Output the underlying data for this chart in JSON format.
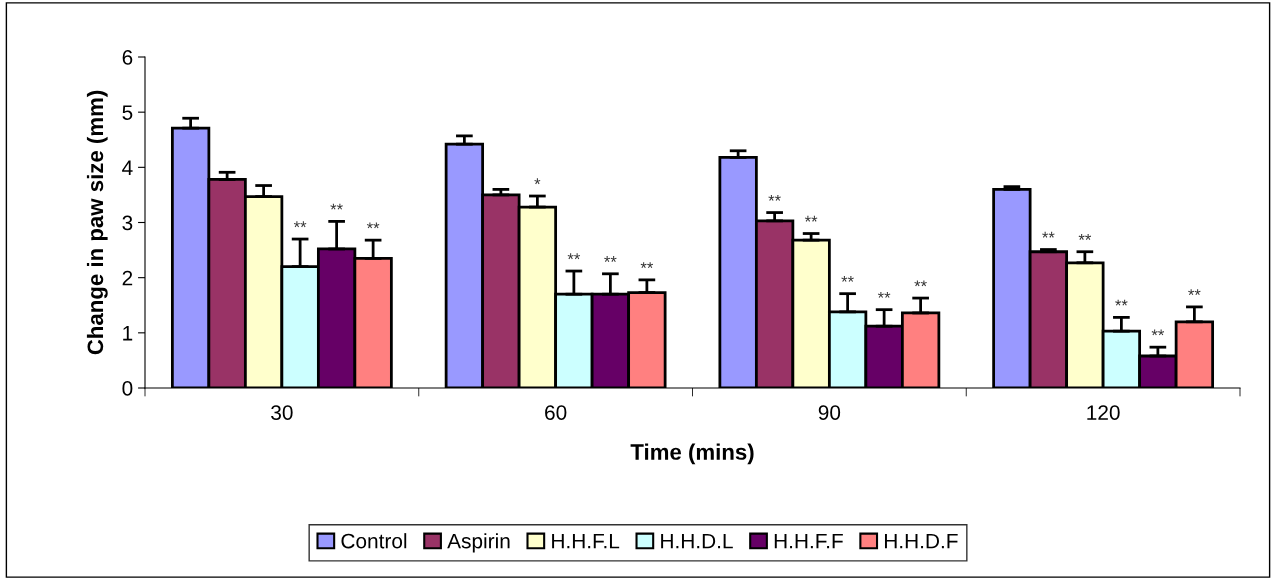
{
  "chart_data": {
    "type": "bar",
    "xlabel": "Time (mins)",
    "ylabel": "Change in paw size (mm)",
    "categories": [
      "30",
      "60",
      "90",
      "120"
    ],
    "ylim": [
      0,
      6
    ],
    "yticks": [
      0,
      1,
      2,
      3,
      4,
      5,
      6
    ],
    "grid": false,
    "legend": "bottom",
    "series": [
      {
        "name": "Control",
        "color": "#9999ff",
        "values": [
          4.71,
          4.42,
          4.18,
          3.6
        ],
        "errors": [
          0.18,
          0.15,
          0.12,
          0.05
        ],
        "value_labels": [
          null,
          null,
          null,
          null
        ]
      },
      {
        "name": "Aspirin",
        "color": "#993366",
        "values": [
          3.78,
          3.5,
          3.03,
          2.47
        ],
        "errors": [
          0.13,
          0.1,
          0.15,
          0.04
        ],
        "value_labels": [
          null,
          null,
          "**",
          "**"
        ]
      },
      {
        "name": "H.H.F.L",
        "color": "#ffffcc",
        "values": [
          3.47,
          3.28,
          2.68,
          2.27
        ],
        "errors": [
          0.2,
          0.2,
          0.12,
          0.2
        ],
        "value_labels": [
          null,
          "*",
          "**",
          "**"
        ]
      },
      {
        "name": "H.H.D.L",
        "color": "#ccffff",
        "values": [
          2.2,
          1.7,
          1.38,
          1.03
        ],
        "errors": [
          0.5,
          0.42,
          0.33,
          0.25
        ],
        "value_labels": [
          "**",
          "**",
          "**",
          "**"
        ]
      },
      {
        "name": "H.H.F.F",
        "color": "#660066",
        "values": [
          2.52,
          1.7,
          1.12,
          0.58
        ],
        "errors": [
          0.5,
          0.37,
          0.3,
          0.16
        ],
        "value_labels": [
          "**",
          "**",
          "**",
          "**"
        ]
      },
      {
        "name": "H.H.D.F",
        "color": "#ff8080",
        "values": [
          2.35,
          1.73,
          1.36,
          1.2
        ],
        "errors": [
          0.33,
          0.23,
          0.27,
          0.27
        ],
        "value_labels": [
          "**",
          "**",
          "**",
          "**"
        ]
      }
    ]
  }
}
